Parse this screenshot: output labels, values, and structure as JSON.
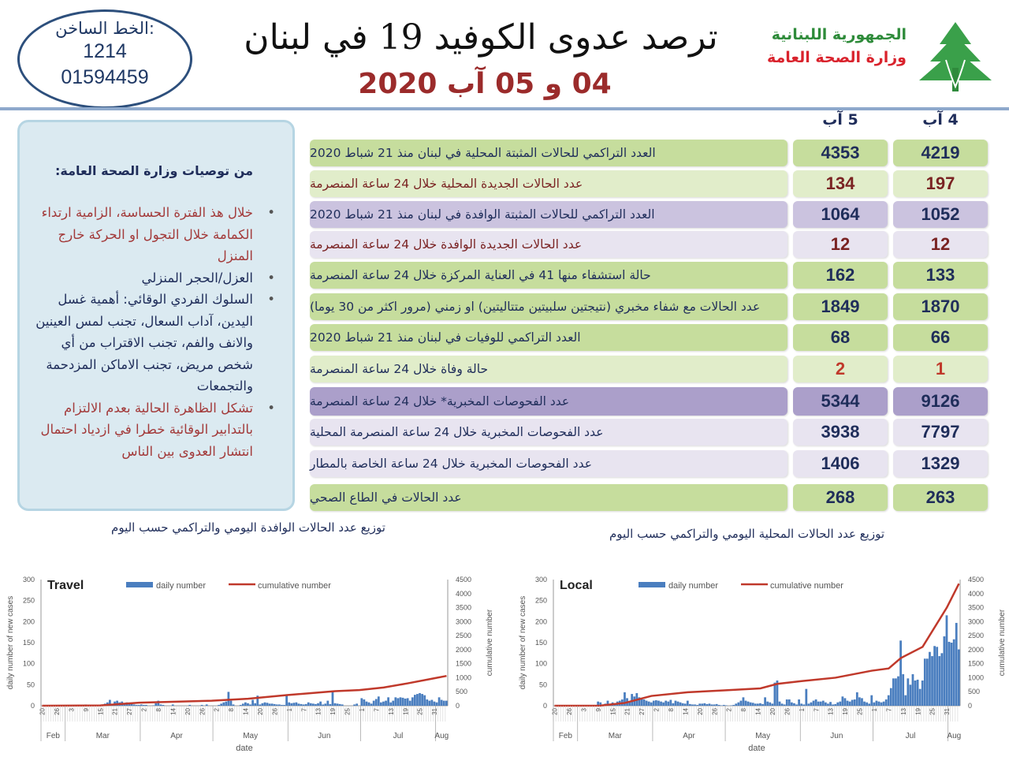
{
  "header": {
    "hotline_label": "الخط الساخن:",
    "hotline_number_1": "1214",
    "hotline_number_2": "01594459",
    "title": "ترصد عدوى الكوفيد 19 في لبنان",
    "subtitle": "04 و 05 آب 2020",
    "ministry_line_1": "الجمهورية اللبنانية",
    "ministry_line_2": "وزارة الصحة العامة",
    "colors": {
      "ministry_line_1": "#2e8b3a",
      "ministry_line_2": "#d9232d",
      "subtitle": "#9b2b2b",
      "logo": "#3aa04a"
    }
  },
  "recommendations": {
    "title": "من توصيات وزارة الصحة العامة:",
    "items": [
      {
        "text": "خلال هذ الفترة الحساسة، الزامية ارتداء الكمامة خلال التجول او الحركة خارج المنزل",
        "color": "red"
      },
      {
        "text": "العزل/الحجر المنزلي",
        "color": "navy"
      },
      {
        "text": "السلوك الفردي الوقائي: أهمية غسل اليدين، آداب السعال، تجنب لمس العينين والانف والفم، تجنب الاقتراب من أي شخص مريض، تجنب الاماكن المزدحمة والتجمعات",
        "color": "navy"
      },
      {
        "text": "تشكل الظاهرة الحالية بعدم الالتزام بالتدابير الوقائية خطرا في ازدياد احتمال انتشار العدوى بين الناس",
        "color": "red"
      }
    ]
  },
  "table": {
    "col_aug5": "5 آب",
    "col_aug4": "4 آب",
    "rows": [
      {
        "label": "العدد التراكمي للحالات المثبتة المحلية في لبنان منذ 21 شباط 2020",
        "aug5": "4353",
        "aug4": "4219",
        "style": "g1",
        "text": "navy",
        "numtext": "navy"
      },
      {
        "label": "عدد الحالات الجديدة المحلية خلال 24 ساعة المنصرمة",
        "aug5": "134",
        "aug4": "197",
        "style": "g2",
        "text": "maroon",
        "numtext": "maroon"
      },
      {
        "label": "العدد التراكمي للحالات المثبتة الوافدة في لبنان منذ 21 شباط 2020",
        "aug5": "1064",
        "aug4": "1052",
        "style": "p1",
        "text": "navy",
        "numtext": "navy"
      },
      {
        "label": "عدد الحالات الجديدة  الوافدة خلال 24 ساعة المنصرمة",
        "aug5": "12",
        "aug4": "12",
        "style": "p2",
        "text": "maroon",
        "numtext": "maroon"
      },
      {
        "label": "حالة استشفاء منها 41 في العناية المركزة خلال 24 ساعة المنصرمة",
        "aug5": "162",
        "aug4": "133",
        "style": "g1",
        "text": "navy",
        "numtext": "navy"
      },
      {
        "label": "عدد الحالات مع شفاء مخبري (نتيجتين سلبيتين متتاليتين) او زمني (مرور اكثر من 30 يوما)",
        "aug5": "1849",
        "aug4": "1870",
        "style": "g1",
        "text": "navy",
        "numtext": "navy"
      },
      {
        "label": "العدد التراكمي للوفيات في لبنان منذ 21 شباط  2020",
        "aug5": "68",
        "aug4": "66",
        "style": "g1",
        "text": "navy",
        "numtext": "navy"
      },
      {
        "label": "حالة وفاة خلال 24 ساعة المنصرمة",
        "aug5": "2",
        "aug4": "1",
        "style": "g2",
        "text": "navy",
        "numtext": "red"
      },
      {
        "label": "عدد الفحوصات المخبرية* خلال 24 ساعة المنصرمة",
        "aug5": "5344",
        "aug4": "9126",
        "style": "p3",
        "text": "navy",
        "numtext": "navy"
      },
      {
        "label": "عدد الفحوصات المخبرية خلال 24 ساعة المنصرمة المحلية",
        "aug5": "3938",
        "aug4": "7797",
        "style": "p2",
        "text": "navy",
        "numtext": "navy"
      },
      {
        "label": "عدد الفحوصات المخبرية خلال 24 ساعة الخاصة بالمطار",
        "aug5": "1406",
        "aug4": "1329",
        "style": "p2",
        "text": "navy",
        "numtext": "navy"
      },
      {
        "label": "عدد الحالات في الطاع الصحي",
        "aug5": "268",
        "aug4": "263",
        "style": "g1",
        "text": "navy",
        "numtext": "navy"
      }
    ]
  },
  "captions": {
    "travel": "توزيع عدد الحالات الوافدة اليومي والتراكمي حسب اليوم",
    "local": "توزيع عدد الحالات المحلية اليومي والتراكمي حسب اليوم"
  },
  "chart_data": [
    {
      "type": "bar+line",
      "title": "Travel",
      "xlabel": "date",
      "ylabel": "daily number of new cases",
      "y2label": "cumulative number",
      "ylim": [
        0,
        300
      ],
      "y2lim": [
        0,
        4500
      ],
      "yticks": [
        "0",
        "50",
        "100",
        "150",
        "200",
        "250",
        "300"
      ],
      "y2ticks": [
        "0",
        "500",
        "1000",
        "1500",
        "2000",
        "2500",
        "3000",
        "3500",
        "4000",
        "4500"
      ],
      "x_range": [
        "2020-02-20",
        "2020-08-05"
      ],
      "day_ticks": [
        "20",
        "26",
        "3",
        "9",
        "15",
        "21",
        "27",
        "2",
        "8",
        "14",
        "20",
        "26",
        "2",
        "8",
        "14",
        "20",
        "26",
        "1",
        "7",
        "13",
        "19",
        "25",
        "1",
        "7",
        "13",
        "19",
        "25",
        "31"
      ],
      "months": [
        "Feb",
        "Mar",
        "Apr",
        "May",
        "Jun",
        "Jul",
        "Aug"
      ],
      "legend": {
        "bar": "daily number",
        "line": "cumulative number",
        "placement": "top"
      },
      "colors": {
        "bar": "#4a7ebf",
        "line": "#c0392b"
      },
      "daily": [
        0,
        0,
        0,
        0,
        0,
        0,
        0,
        0,
        0,
        0,
        0,
        0,
        0,
        0,
        0,
        0,
        2,
        0,
        3,
        0,
        0,
        0,
        0,
        2,
        0,
        3,
        5,
        8,
        14,
        4,
        10,
        12,
        8,
        10,
        6,
        8,
        5,
        4,
        3,
        2,
        2,
        3,
        2,
        2,
        0,
        0,
        1,
        6,
        12,
        3,
        2,
        0,
        0,
        0,
        3,
        0,
        0,
        0,
        0,
        0,
        0,
        2,
        0,
        0,
        0,
        0,
        2,
        0,
        3,
        0,
        0,
        0,
        0,
        2,
        5,
        8,
        10,
        33,
        12,
        3,
        0,
        0,
        2,
        5,
        8,
        6,
        3,
        14,
        6,
        24,
        3,
        6,
        8,
        7,
        5,
        5,
        4,
        3,
        3,
        2,
        2,
        25,
        8,
        6,
        7,
        8,
        5,
        4,
        3,
        4,
        8,
        6,
        5,
        4,
        6,
        10,
        3,
        5,
        12,
        4,
        35,
        6,
        5,
        4,
        3,
        0,
        0,
        0,
        0,
        3,
        5,
        0,
        18,
        15,
        10,
        8,
        5,
        12,
        16,
        22,
        8,
        10,
        12,
        20,
        8,
        12,
        20,
        18,
        20,
        19,
        17,
        18,
        12,
        20,
        26,
        28,
        30,
        28,
        25,
        15,
        12,
        14,
        10,
        8,
        20,
        14,
        12,
        12
      ],
      "cumulative": [
        [
          "2020-02-20",
          0
        ],
        [
          "2020-03-15",
          10
        ],
        [
          "2020-03-31",
          110
        ],
        [
          "2020-04-30",
          180
        ],
        [
          "2020-05-15",
          250
        ],
        [
          "2020-05-31",
          380
        ],
        [
          "2020-06-20",
          520
        ],
        [
          "2020-06-30",
          560
        ],
        [
          "2020-07-10",
          650
        ],
        [
          "2020-07-20",
          800
        ],
        [
          "2020-07-31",
          980
        ],
        [
          "2020-08-05",
          1064
        ]
      ]
    },
    {
      "type": "bar+line",
      "title": "Local",
      "xlabel": "date",
      "ylabel": "daily number of new cases",
      "y2label": "cumulative number",
      "ylim": [
        0,
        300
      ],
      "y2lim": [
        0,
        4500
      ],
      "yticks": [
        "0",
        "50",
        "100",
        "150",
        "200",
        "250",
        "300"
      ],
      "y2ticks": [
        "0",
        "500",
        "1000",
        "1500",
        "2000",
        "2500",
        "3000",
        "3500",
        "4000",
        "4500"
      ],
      "x_range": [
        "2020-02-20",
        "2020-08-05"
      ],
      "day_ticks": [
        "20",
        "26",
        "3",
        "9",
        "15",
        "21",
        "27",
        "2",
        "8",
        "14",
        "20",
        "26",
        "2",
        "8",
        "14",
        "20",
        "26",
        "1",
        "7",
        "13",
        "19",
        "25",
        "1",
        "7",
        "13",
        "19",
        "25",
        "31"
      ],
      "months": [
        "Feb",
        "Mar",
        "Apr",
        "May",
        "Jun",
        "Jul",
        "Aug"
      ],
      "legend": {
        "bar": "daily number",
        "line": "cumulative number",
        "placement": "top"
      },
      "colors": {
        "bar": "#4a7ebf",
        "line": "#c0392b"
      },
      "daily": [
        0,
        0,
        0,
        0,
        0,
        0,
        0,
        0,
        0,
        0,
        0,
        0,
        0,
        0,
        0,
        0,
        0,
        0,
        10,
        8,
        2,
        5,
        12,
        3,
        8,
        6,
        10,
        12,
        15,
        32,
        18,
        10,
        28,
        22,
        30,
        20,
        18,
        15,
        12,
        10,
        8,
        12,
        13,
        12,
        10,
        8,
        12,
        10,
        14,
        6,
        12,
        10,
        8,
        6,
        5,
        12,
        4,
        3,
        3,
        2,
        5,
        5,
        6,
        4,
        5,
        3,
        3,
        4,
        2,
        1,
        2,
        1,
        0,
        1,
        2,
        5,
        8,
        12,
        20,
        12,
        10,
        8,
        7,
        5,
        5,
        6,
        4,
        20,
        10,
        8,
        5,
        55,
        60,
        10,
        5,
        3,
        15,
        15,
        8,
        6,
        3,
        15,
        5,
        3,
        40,
        5,
        8,
        12,
        15,
        10,
        10,
        12,
        8,
        5,
        9,
        3,
        4,
        8,
        10,
        22,
        18,
        12,
        10,
        14,
        15,
        32,
        20,
        18,
        10,
        8,
        5,
        25,
        8,
        12,
        10,
        8,
        10,
        15,
        25,
        42,
        65,
        65,
        70,
        155,
        75,
        25,
        65,
        50,
        75,
        60,
        62,
        40,
        60,
        112,
        112,
        128,
        118,
        142,
        140,
        118,
        125,
        165,
        215,
        152,
        150,
        158,
        197,
        134
      ],
      "cumulative": [
        [
          "2020-02-20",
          0
        ],
        [
          "2020-03-10",
          5
        ],
        [
          "2020-03-20",
          100
        ],
        [
          "2020-03-31",
          350
        ],
        [
          "2020-04-15",
          480
        ],
        [
          "2020-04-30",
          550
        ],
        [
          "2020-05-15",
          620
        ],
        [
          "2020-05-22",
          780
        ],
        [
          "2020-06-01",
          880
        ],
        [
          "2020-06-15",
          1000
        ],
        [
          "2020-06-30",
          1250
        ],
        [
          "2020-07-07",
          1330
        ],
        [
          "2020-07-12",
          1700
        ],
        [
          "2020-07-21",
          2100
        ],
        [
          "2020-07-31",
          3500
        ],
        [
          "2020-08-05",
          4353
        ]
      ]
    }
  ]
}
